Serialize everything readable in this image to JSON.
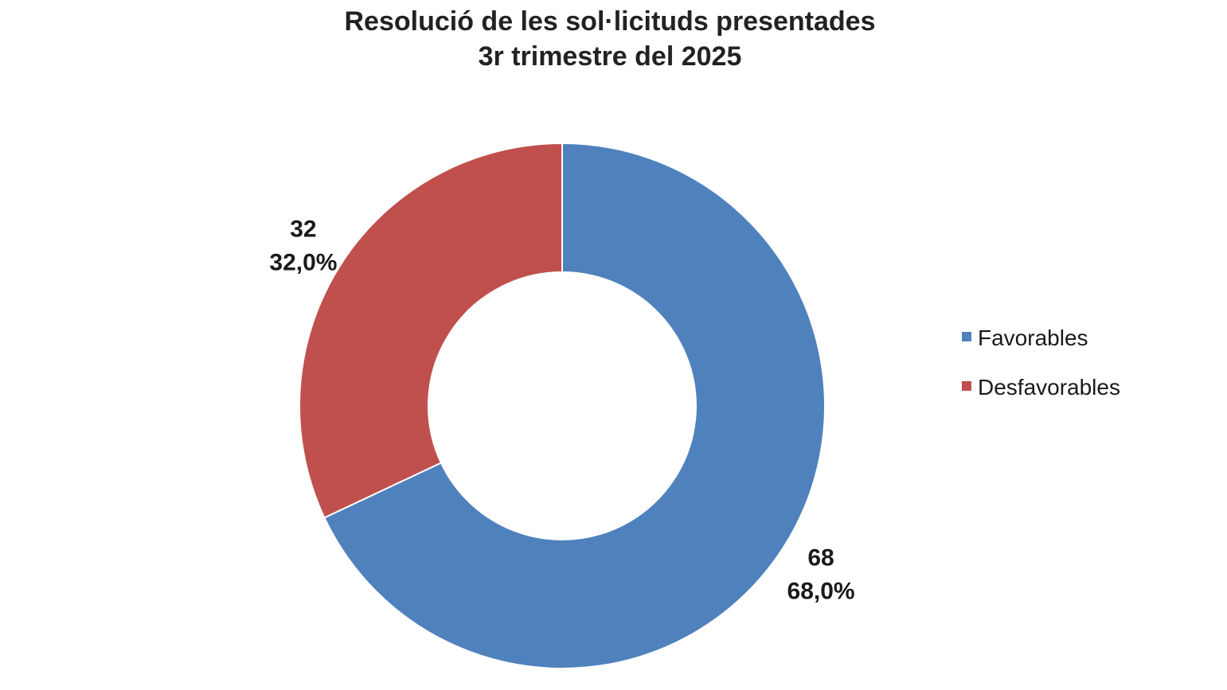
{
  "chart_data": {
    "type": "pie",
    "title": "Resolució de les sol·licituds presentades",
    "subtitle": "3r trimestre del 2025",
    "categories": [
      "Favorables",
      "Desfavorables"
    ],
    "values": [
      68,
      32
    ],
    "percent_labels": [
      "68,0%",
      "32,0%"
    ],
    "colors": [
      "#4f81bd",
      "#c0504d"
    ],
    "donut": true,
    "legend_position": "right"
  }
}
